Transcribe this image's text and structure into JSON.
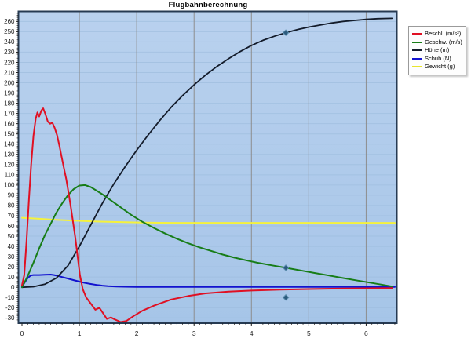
{
  "chart_data": {
    "type": "line",
    "title": "Flugbahnberechnung",
    "xlabel": "",
    "ylabel": "",
    "xlim": [
      0,
      6.55
    ],
    "ylim": [
      -35,
      270
    ],
    "x_ticks": [
      0,
      1,
      2,
      3,
      4,
      5,
      6
    ],
    "y_tick_min": -30,
    "y_tick_max": 260,
    "y_tick_step": 10,
    "grid": {
      "vertical": true,
      "horizontal_faint": true
    },
    "legend_position": "outside-top-right",
    "colors": {
      "plot_bg_top": "#b9d1ee",
      "plot_bg_bottom": "#a6c5e8",
      "grid_vertical": "#8d8d8d",
      "grid_horizontal": "#9bbbdc",
      "plot_border": "#263a52",
      "tick": "#222222",
      "tick_label": "#1a1a1a",
      "marker_fill": "#2b5a7d",
      "marker_stroke": "#5e8fae"
    },
    "series": [
      {
        "name": "Beschl. (m/s²)",
        "color": "#e01023",
        "width": 2,
        "points": [
          [
            0,
            2
          ],
          [
            0.04,
            12
          ],
          [
            0.08,
            45
          ],
          [
            0.12,
            85
          ],
          [
            0.16,
            120
          ],
          [
            0.2,
            148
          ],
          [
            0.24,
            165
          ],
          [
            0.27,
            171
          ],
          [
            0.3,
            167
          ],
          [
            0.34,
            173
          ],
          [
            0.37,
            175
          ],
          [
            0.41,
            169
          ],
          [
            0.45,
            162
          ],
          [
            0.49,
            160
          ],
          [
            0.53,
            161
          ],
          [
            0.57,
            156
          ],
          [
            0.61,
            149
          ],
          [
            0.65,
            139
          ],
          [
            0.69,
            128
          ],
          [
            0.73,
            117
          ],
          [
            0.77,
            106
          ],
          [
            0.81,
            93
          ],
          [
            0.85,
            79
          ],
          [
            0.89,
            64
          ],
          [
            0.93,
            48
          ],
          [
            0.97,
            30
          ],
          [
            1.01,
            12
          ],
          [
            1.06,
            -2
          ],
          [
            1.12,
            -10
          ],
          [
            1.2,
            -16
          ],
          [
            1.28,
            -22
          ],
          [
            1.35,
            -20
          ],
          [
            1.42,
            -26
          ],
          [
            1.48,
            -31
          ],
          [
            1.55,
            -29.5
          ],
          [
            1.62,
            -31.5
          ],
          [
            1.72,
            -34
          ],
          [
            1.82,
            -33
          ],
          [
            1.95,
            -28
          ],
          [
            2.1,
            -23
          ],
          [
            2.3,
            -18
          ],
          [
            2.6,
            -12
          ],
          [
            2.9,
            -8.5
          ],
          [
            3.2,
            -6
          ],
          [
            3.6,
            -4.2
          ],
          [
            4,
            -3.2
          ],
          [
            4.5,
            -2.4
          ],
          [
            5,
            -1.8
          ],
          [
            5.5,
            -1.3
          ],
          [
            6,
            -1
          ],
          [
            6.45,
            -0.8
          ]
        ]
      },
      {
        "name": "Geschw. (m/s)",
        "color": "#177d17",
        "width": 2,
        "points": [
          [
            0,
            0
          ],
          [
            0.1,
            11
          ],
          [
            0.2,
            24
          ],
          [
            0.3,
            38
          ],
          [
            0.4,
            51
          ],
          [
            0.5,
            62
          ],
          [
            0.6,
            73
          ],
          [
            0.7,
            82
          ],
          [
            0.8,
            90
          ],
          [
            0.9,
            96
          ],
          [
            1,
            99.5
          ],
          [
            1.1,
            100
          ],
          [
            1.2,
            98
          ],
          [
            1.3,
            94.5
          ],
          [
            1.4,
            91
          ],
          [
            1.5,
            87
          ],
          [
            1.7,
            79
          ],
          [
            1.9,
            71
          ],
          [
            2.1,
            64
          ],
          [
            2.3,
            58
          ],
          [
            2.5,
            52.5
          ],
          [
            2.7,
            47.5
          ],
          [
            2.9,
            43
          ],
          [
            3.1,
            39
          ],
          [
            3.3,
            35.5
          ],
          [
            3.5,
            32
          ],
          [
            3.7,
            29
          ],
          [
            3.9,
            26.5
          ],
          [
            4.1,
            24
          ],
          [
            4.35,
            21.5
          ],
          [
            4.6,
            19
          ],
          [
            4.85,
            16.5
          ],
          [
            5.1,
            14
          ],
          [
            5.35,
            11.5
          ],
          [
            5.6,
            9
          ],
          [
            5.85,
            6.5
          ],
          [
            6.1,
            4.2
          ],
          [
            6.3,
            2.3
          ],
          [
            6.45,
            0.8
          ]
        ]
      },
      {
        "name": "Höhe (m)",
        "color": "#131b2a",
        "width": 1.8,
        "points": [
          [
            0,
            0
          ],
          [
            0.2,
            0.5
          ],
          [
            0.4,
            3
          ],
          [
            0.6,
            9
          ],
          [
            0.8,
            21
          ],
          [
            1,
            40
          ],
          [
            1.2,
            61
          ],
          [
            1.4,
            82
          ],
          [
            1.6,
            101
          ],
          [
            1.8,
            118
          ],
          [
            2,
            134
          ],
          [
            2.2,
            149
          ],
          [
            2.4,
            163
          ],
          [
            2.6,
            176
          ],
          [
            2.8,
            187.5
          ],
          [
            3,
            198
          ],
          [
            3.2,
            207.5
          ],
          [
            3.4,
            216
          ],
          [
            3.6,
            223.5
          ],
          [
            3.8,
            230.5
          ],
          [
            4,
            236.5
          ],
          [
            4.2,
            241.5
          ],
          [
            4.4,
            245.5
          ],
          [
            4.6,
            249
          ],
          [
            4.8,
            252
          ],
          [
            5,
            254.5
          ],
          [
            5.2,
            256.5
          ],
          [
            5.4,
            258.5
          ],
          [
            5.6,
            260
          ],
          [
            5.8,
            261
          ],
          [
            6,
            262
          ],
          [
            6.2,
            262.7
          ],
          [
            6.45,
            263
          ]
        ]
      },
      {
        "name": "Schub (N)",
        "color": "#1212cf",
        "width": 2,
        "points": [
          [
            0,
            0.5
          ],
          [
            0.05,
            5
          ],
          [
            0.1,
            9
          ],
          [
            0.15,
            11.5
          ],
          [
            0.2,
            12
          ],
          [
            0.3,
            12
          ],
          [
            0.4,
            12.3
          ],
          [
            0.5,
            12.4
          ],
          [
            0.56,
            12
          ],
          [
            0.62,
            11.2
          ],
          [
            0.7,
            10
          ],
          [
            0.8,
            8.5
          ],
          [
            0.9,
            7
          ],
          [
            1,
            5.5
          ],
          [
            1.1,
            4.2
          ],
          [
            1.2,
            3.2
          ],
          [
            1.3,
            2.3
          ],
          [
            1.4,
            1.6
          ],
          [
            1.5,
            1.1
          ],
          [
            1.65,
            0.7
          ],
          [
            1.8,
            0.5
          ],
          [
            2,
            0.4
          ],
          [
            2.5,
            0.35
          ],
          [
            3,
            0.3
          ],
          [
            4,
            0.3
          ],
          [
            5,
            0.3
          ],
          [
            6,
            0.3
          ],
          [
            6.5,
            0.3
          ]
        ]
      },
      {
        "name": "Gewicht (g)",
        "color": "#f5f23c",
        "width": 2,
        "points": [
          [
            0,
            68
          ],
          [
            0.3,
            67
          ],
          [
            0.6,
            66
          ],
          [
            0.9,
            65.2
          ],
          [
            1.2,
            64.5
          ],
          [
            1.5,
            64
          ],
          [
            1.8,
            63.6
          ],
          [
            2.1,
            63.3
          ],
          [
            2.4,
            63.1
          ],
          [
            2.7,
            63
          ],
          [
            3,
            63
          ],
          [
            3.5,
            63
          ],
          [
            4,
            63
          ],
          [
            4.5,
            63
          ],
          [
            5,
            63
          ],
          [
            5.5,
            63
          ],
          [
            6,
            63
          ],
          [
            6.5,
            63
          ]
        ]
      }
    ],
    "selected_markers": {
      "shape": "diamond",
      "points": [
        [
          4.6,
          249
        ],
        [
          4.6,
          19
        ],
        [
          4.6,
          -10
        ]
      ]
    }
  },
  "legend": {
    "items": [
      {
        "label": "Beschl. (m/s²)",
        "color": "#e01023"
      },
      {
        "label": "Geschw. (m/s)",
        "color": "#177d17"
      },
      {
        "label": "Höhe (m)",
        "color": "#131b2a"
      },
      {
        "label": "Schub (N)",
        "color": "#1212cf"
      },
      {
        "label": "Gewicht (g)",
        "color": "#e8e52c"
      }
    ]
  }
}
